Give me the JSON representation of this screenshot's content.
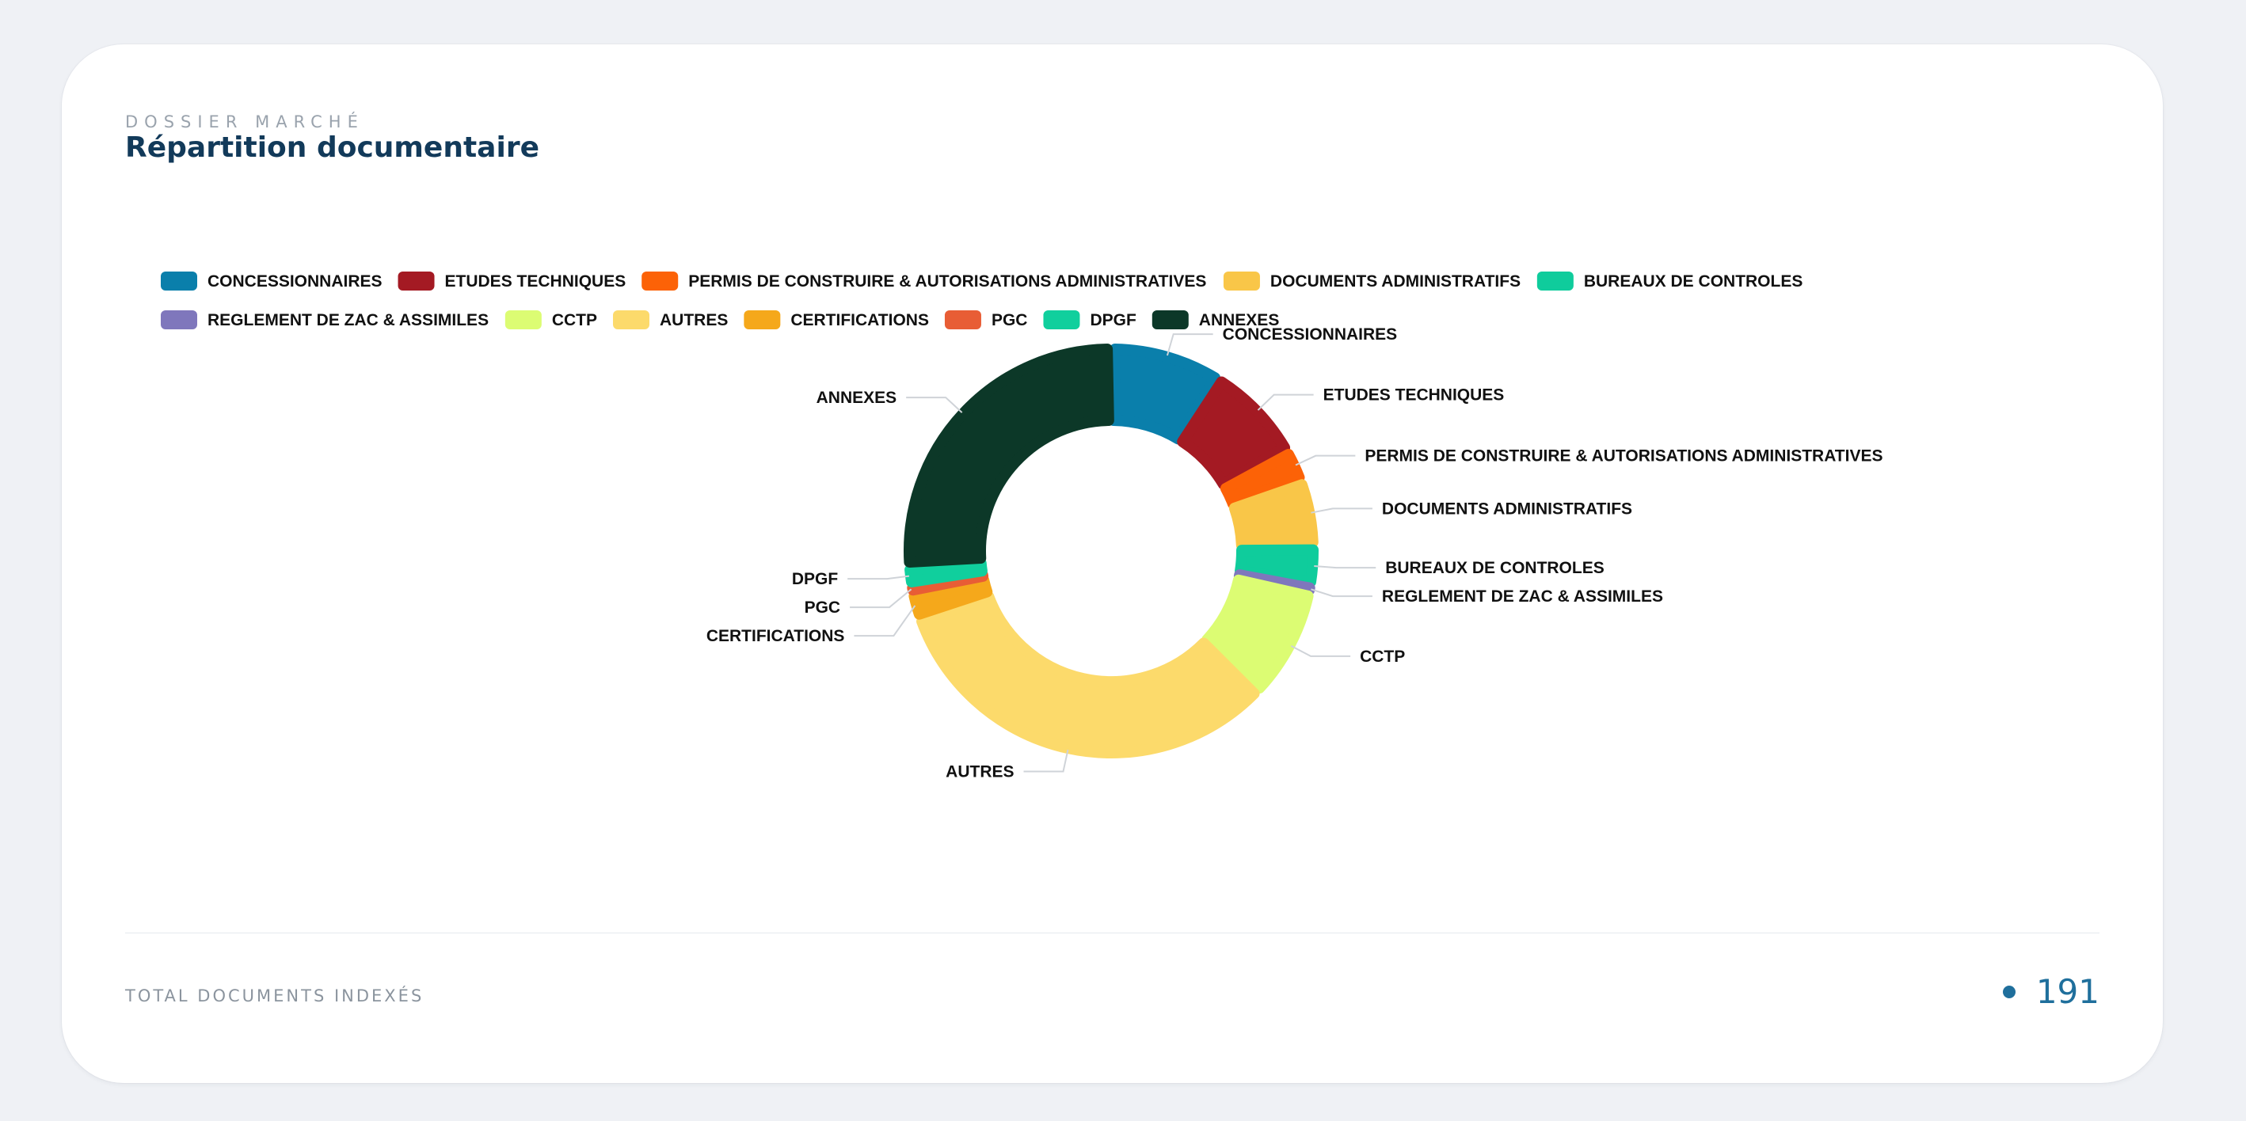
{
  "header": {
    "eyebrow": "DOSSIER MARCHÉ",
    "title": "Répartition documentaire"
  },
  "footer": {
    "label": "TOTAL DOCUMENTS INDEXÉS",
    "value": "191",
    "accent": "#1f6f9c"
  },
  "chart_data": {
    "type": "pie",
    "variant": "donut",
    "title": "",
    "legend_position": "top",
    "categories": [
      "CONCESSIONNAIRES",
      "ETUDES TECHNIQUES",
      "PERMIS DE CONSTRUIRE & AUTORISATIONS ADMINISTRATIVES",
      "DOCUMENTS ADMINISTRATIFS",
      "BUREAUX DE CONTROLES",
      "REGLEMENT DE ZAC & ASSIMILES",
      "CCTP",
      "AUTRES",
      "CERTIFICATIONS",
      "PGC",
      "DPGF",
      "ANNEXES"
    ],
    "values": [
      17,
      15,
      5,
      10,
      6,
      1,
      17,
      62,
      4,
      1,
      3,
      50
    ],
    "colors": [
      "#0a7fab",
      "#a41a23",
      "#fc6207",
      "#f9c648",
      "#0fcc9c",
      "#7f77bc",
      "#dcfc73",
      "#fcda6b",
      "#f5a81b",
      "#e85d35",
      "#10cf9d",
      "#0c3828"
    ]
  }
}
